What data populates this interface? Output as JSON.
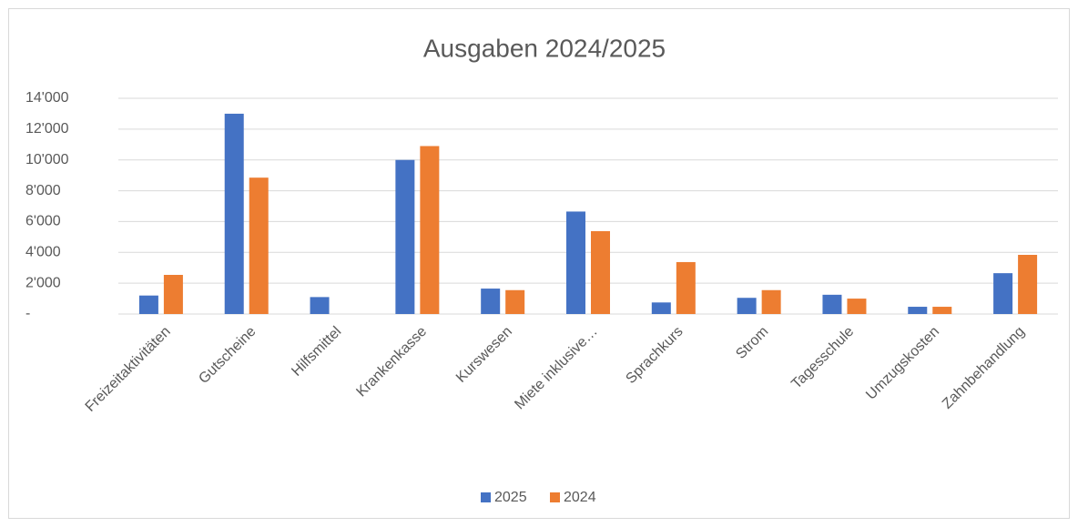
{
  "chart_data": {
    "type": "bar",
    "title": "Ausgaben 2024/2025",
    "categories": [
      "Freizeitaktivitäten",
      "Gutscheine",
      "Hilfsmittel",
      "Krankenkasse",
      "Kurswesen",
      "Miete inklusive…",
      "Sprachkurs",
      "Strom",
      "Tagesschule",
      "Umzugskosten",
      "Zahnbehandlung"
    ],
    "series": [
      {
        "name": "2025",
        "color": "#4472c4",
        "values": [
          1200,
          13000,
          1100,
          10000,
          1650,
          6650,
          750,
          1050,
          1250,
          470,
          2650
        ]
      },
      {
        "name": "2024",
        "color": "#ed7d31",
        "values": [
          2540,
          8850,
          null,
          10900,
          1550,
          5380,
          3370,
          1550,
          1000,
          470,
          3840
        ]
      }
    ],
    "ylim": [
      0,
      14000
    ],
    "yticks": [
      {
        "value": 0,
        "label": "-"
      },
      {
        "value": 2000,
        "label": "2'000"
      },
      {
        "value": 4000,
        "label": "4'000"
      },
      {
        "value": 6000,
        "label": "6'000"
      },
      {
        "value": 8000,
        "label": "8'000"
      },
      {
        "value": 10000,
        "label": "10'000"
      },
      {
        "value": 12000,
        "label": "12'000"
      },
      {
        "value": 14000,
        "label": "14'000"
      }
    ],
    "grid": true,
    "legend": "bottom"
  }
}
